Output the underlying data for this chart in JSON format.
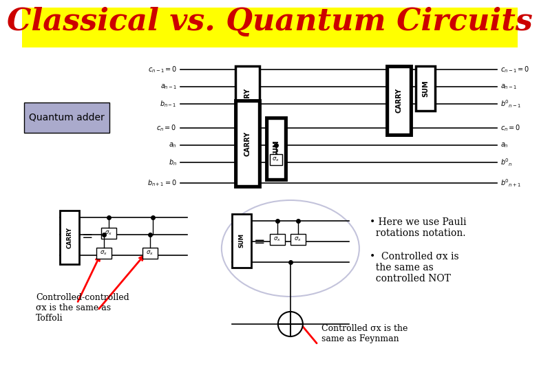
{
  "title": "Classical vs. Quantum Circuits",
  "title_color": "#CC0000",
  "title_bg": "#FFFF00",
  "title_fontsize": 32,
  "bg_color": "#FFFFFF",
  "subtitle": "Quantum adder",
  "subtitle_bg": "#AAAADD",
  "bullet1": "• Here we use Pauli\n  rotations notation.",
  "bullet2": "•  Controlled σx is\n  the same as\n  controlled NOT",
  "label_toffoli": "Controlled-controlled\nσx is the same as\nToffoli",
  "label_feynman": "Controlled σx is the\nsame as Feynman",
  "sigma_x": "σx",
  "lines_top": [
    "c_{n-1} = 0",
    "a_{n-1}",
    "b_{n-1}",
    "c_n = 0",
    "a_n",
    "b_n",
    "b_{n+1} = 0"
  ],
  "lines_right": [
    "c_{n-1} = 0",
    "a_{n-1}",
    "b'_{n-1}",
    "c_n = 0",
    "a_n",
    "b'_n",
    "b'_{n+1}"
  ]
}
